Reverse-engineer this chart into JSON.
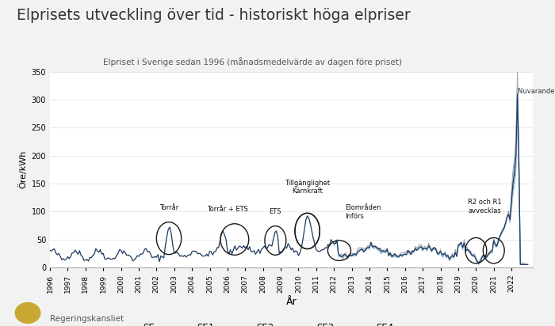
{
  "title": "Elprisets utveckling över tid - historiskt höga elpriser",
  "subtitle": "Elpriset i Sverige sedan 1996 (månadsmedelvärde av dagen före priset)",
  "xlabel": "År",
  "ylabel": "Öre/kWh",
  "ylim": [
    0,
    350
  ],
  "yticks": [
    0,
    50,
    100,
    150,
    200,
    250,
    300,
    350
  ],
  "background_color": "#f2f2f2",
  "plot_bg_color": "#ffffff",
  "line_colors": {
    "SE": "#1e3a5f",
    "SE1": "#b0c4d8",
    "SE2": "#5b9bd5",
    "SE3": "#95b8d1",
    "SE4": "#9e9e9e"
  },
  "footer_text": "Regeringskansliet"
}
